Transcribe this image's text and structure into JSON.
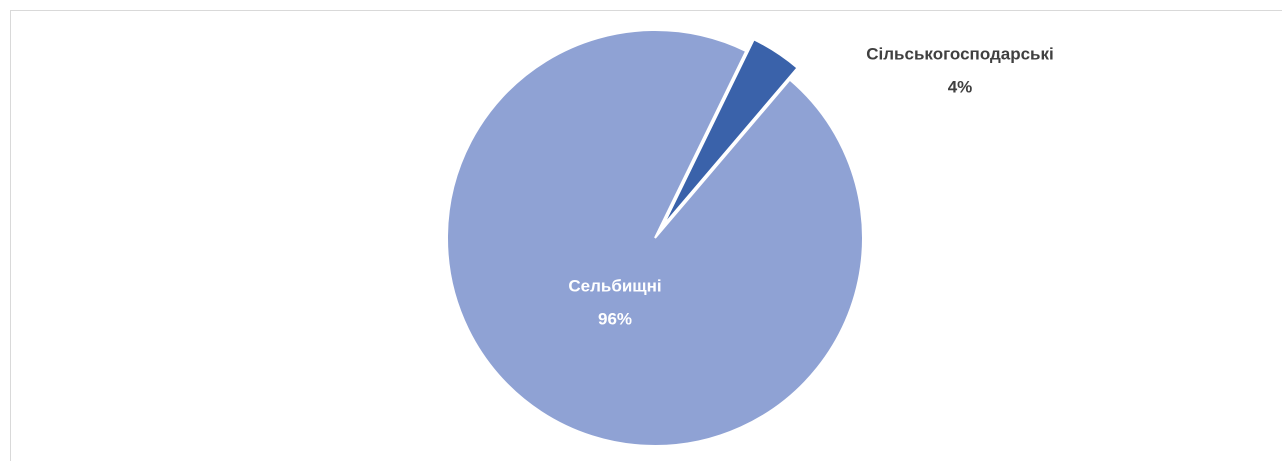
{
  "chart_data": {
    "type": "pie",
    "categories": [
      "Сільськогосподарські",
      "Сельбищні"
    ],
    "values": [
      4,
      96
    ],
    "value_labels": [
      "4%",
      "96%"
    ],
    "colors": [
      "#3a62aa",
      "#8fa2d4"
    ]
  }
}
